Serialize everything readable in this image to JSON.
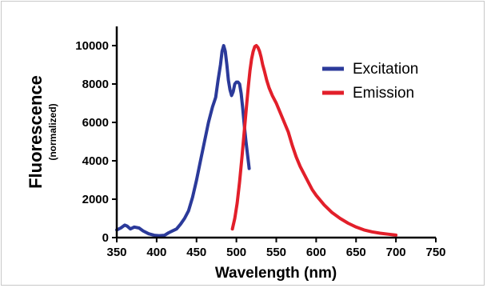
{
  "colors": {
    "excitation": "#2b3a9a",
    "emission": "#e21f2a",
    "axis": "#000000"
  },
  "chart_data": {
    "type": "line",
    "xlabel": "Wavelength (nm)",
    "ylabel": "Fluorescence",
    "ylabel_sub": "(normalized)",
    "xlim": [
      350,
      750
    ],
    "ylim": [
      0,
      10000
    ],
    "xticks": [
      "350",
      "400",
      "450",
      "500",
      "550",
      "600",
      "650",
      "700",
      "750"
    ],
    "yticks": [
      "0",
      "2000",
      "4000",
      "6000",
      "8000",
      "10000"
    ],
    "grid": false,
    "legend_position": "top-right",
    "series": [
      {
        "name": "Excitation",
        "color": "#2b3a9a",
        "x": [
          350,
          355,
          360,
          363,
          367,
          372,
          378,
          383,
          390,
          397,
          403,
          410,
          415,
          420,
          425,
          430,
          435,
          440,
          445,
          450,
          455,
          460,
          465,
          470,
          474,
          477,
          480,
          482,
          484,
          486,
          488,
          490,
          492,
          494,
          496,
          498,
          500,
          502,
          504,
          506,
          508,
          510,
          512,
          514,
          516
        ],
        "y": [
          400,
          500,
          650,
          600,
          450,
          550,
          500,
          350,
          200,
          120,
          100,
          120,
          250,
          350,
          450,
          700,
          1000,
          1400,
          2100,
          3000,
          4000,
          5000,
          6000,
          6800,
          7300,
          8200,
          9000,
          9700,
          10000,
          9700,
          9000,
          8200,
          7700,
          7400,
          7600,
          8000,
          8100,
          8100,
          8000,
          7500,
          6700,
          5800,
          5000,
          4300,
          3600
        ]
      },
      {
        "name": "Emission",
        "color": "#e21f2a",
        "x": [
          495,
          498,
          501,
          504,
          507,
          510,
          513,
          515,
          517,
          519,
          521,
          523,
          525,
          527,
          529,
          531,
          533,
          535,
          538,
          541,
          545,
          550,
          555,
          560,
          565,
          570,
          575,
          580,
          585,
          590,
          595,
          600,
          610,
          620,
          630,
          640,
          650,
          660,
          670,
          680,
          690,
          700
        ],
        "y": [
          450,
          1000,
          1800,
          2900,
          4200,
          5600,
          7000,
          7900,
          8700,
          9300,
          9700,
          9950,
          10000,
          9900,
          9700,
          9400,
          9000,
          8700,
          8200,
          7800,
          7400,
          7000,
          6500,
          6000,
          5500,
          4800,
          4200,
          3700,
          3300,
          2900,
          2500,
          2200,
          1700,
          1300,
          1000,
          750,
          550,
          400,
          300,
          230,
          180,
          130
        ]
      }
    ]
  }
}
